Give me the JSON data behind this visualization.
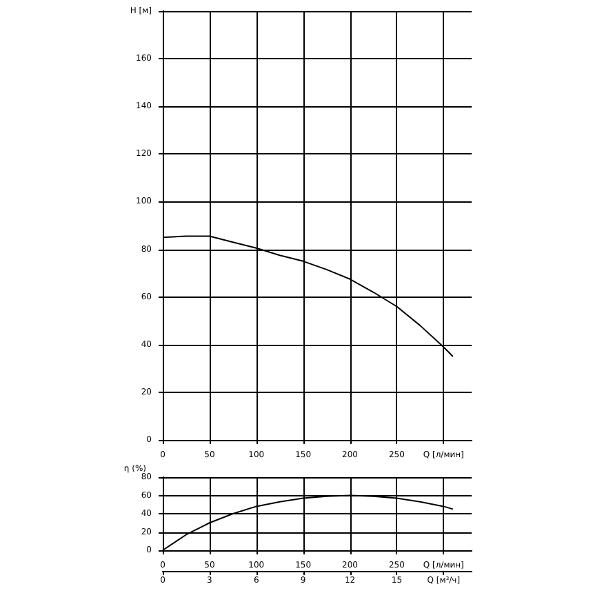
{
  "chart_data": [
    {
      "type": "line",
      "xlim": [
        0,
        330
      ],
      "xticks": [
        0,
        50,
        100,
        150,
        200,
        250,
        {
          "value": 300,
          "label": "Q [л/мин]"
        }
      ],
      "ylim": [
        0,
        180
      ],
      "yticks": [
        0,
        20,
        40,
        60,
        80,
        100,
        120,
        140,
        160,
        {
          "value": 180,
          "label": "H [м]"
        }
      ],
      "grid": true,
      "marker": "none",
      "line_style": "solid",
      "series": [
        {
          "color": "#000000",
          "x": [
            0,
            25,
            50,
            75,
            100,
            125,
            150,
            175,
            200,
            225,
            250,
            275,
            300,
            310
          ],
          "values": [
            85,
            85.5,
            85.5,
            83,
            80.5,
            77.5,
            75,
            71.5,
            67.5,
            62,
            56,
            48,
            39,
            35
          ]
        }
      ]
    },
    {
      "type": "line",
      "ylabel": "η (%)",
      "xlim": [
        0,
        330
      ],
      "xticks": [
        0,
        50,
        100,
        150,
        200,
        250,
        {
          "value": 300,
          "label": "Q [л/мин]"
        }
      ],
      "ylim": [
        0,
        80
      ],
      "yticks": [
        0,
        20,
        40,
        60,
        80
      ],
      "x2lim": [
        0,
        19.8
      ],
      "x2ticks": [
        0,
        3,
        6,
        9,
        12,
        15,
        {
          "value": 18,
          "label": "Q [м³/ч]"
        }
      ],
      "grid": true,
      "marker": "none",
      "line_style": "solid",
      "series": [
        {
          "color": "#000000",
          "x": [
            0,
            25,
            50,
            75,
            100,
            125,
            150,
            175,
            200,
            225,
            250,
            275,
            300,
            310
          ],
          "values": [
            0,
            17,
            30,
            40,
            48,
            53,
            57,
            59,
            60,
            59,
            57,
            53,
            48,
            45
          ]
        }
      ]
    }
  ]
}
